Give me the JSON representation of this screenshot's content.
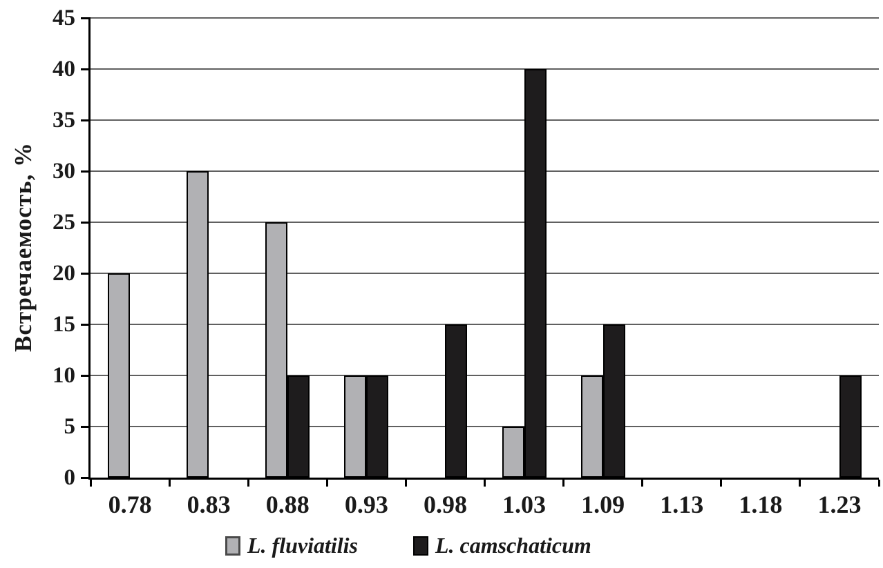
{
  "chart_data": {
    "type": "bar",
    "title": "",
    "xlabel": "",
    "ylabel": "Встречаемость, %",
    "categories": [
      "0.78",
      "0.83",
      "0.88",
      "0.93",
      "0.98",
      "1.03",
      "1.09",
      "1.13",
      "1.18",
      "1.23"
    ],
    "series": [
      {
        "name": "L. fluviatilis",
        "color": "#b1b1b4",
        "values": [
          20,
          30,
          25,
          10,
          0,
          5,
          10,
          0,
          0,
          0
        ]
      },
      {
        "name": "L. camschaticum",
        "color": "#1e1c1d",
        "values": [
          0,
          0,
          10,
          10,
          15,
          40,
          15,
          0,
          0,
          10
        ]
      }
    ],
    "ylim": [
      0,
      45
    ],
    "yticks": [
      0,
      5,
      10,
      15,
      20,
      25,
      30,
      35,
      40,
      45
    ],
    "grid": "horizontal",
    "legend_position": "bottom"
  },
  "colors": {
    "grid": "#606060",
    "axis": "#000000",
    "text": "#1a1a1a",
    "background": "#ffffff"
  }
}
